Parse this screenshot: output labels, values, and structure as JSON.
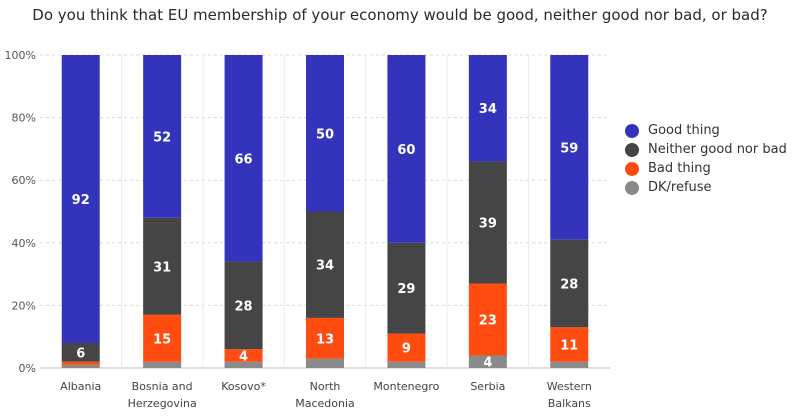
{
  "title": "Do you think that EU membership of your economy would be good, neither good nor bad, or bad?",
  "chart_data": {
    "type": "bar",
    "stacked": true,
    "categories": [
      [
        "Albania"
      ],
      [
        "Bosnia and",
        "Herzegovina"
      ],
      [
        "Kosovo*"
      ],
      [
        "North",
        "Macedonia"
      ],
      [
        "Montenegro"
      ],
      [
        "Serbia"
      ],
      [
        "Western",
        "Balkans"
      ]
    ],
    "series": [
      {
        "name": "Good thing",
        "color": "#3333bb",
        "values": [
          92,
          52,
          66,
          50,
          60,
          34,
          59
        ],
        "labels": [
          "92",
          "52",
          "66",
          "50",
          "60",
          "34",
          "59"
        ]
      },
      {
        "name": "Neither good nor bad",
        "color": "#454545",
        "values": [
          6,
          31,
          28,
          34,
          29,
          39,
          28
        ],
        "labels": [
          "6",
          "31",
          "28",
          "34",
          "29",
          "39",
          "28"
        ]
      },
      {
        "name": "Bad thing",
        "color": "#ff4d12",
        "values": [
          1,
          15,
          4,
          13,
          9,
          23,
          11
        ],
        "labels": [
          "",
          "15",
          "4",
          "13",
          "9",
          "23",
          "11"
        ]
      },
      {
        "name": "DK/refuse",
        "color": "#8a8a8a",
        "values": [
          1,
          2,
          2,
          3,
          2,
          4,
          2
        ],
        "labels": [
          "",
          "",
          "",
          "",
          "",
          "4",
          ""
        ]
      }
    ],
    "ylim": [
      0,
      100
    ],
    "yticks": [
      "0%",
      "20%",
      "40%",
      "60%",
      "80%",
      "100%"
    ],
    "grid": true,
    "legend_position": "right"
  }
}
